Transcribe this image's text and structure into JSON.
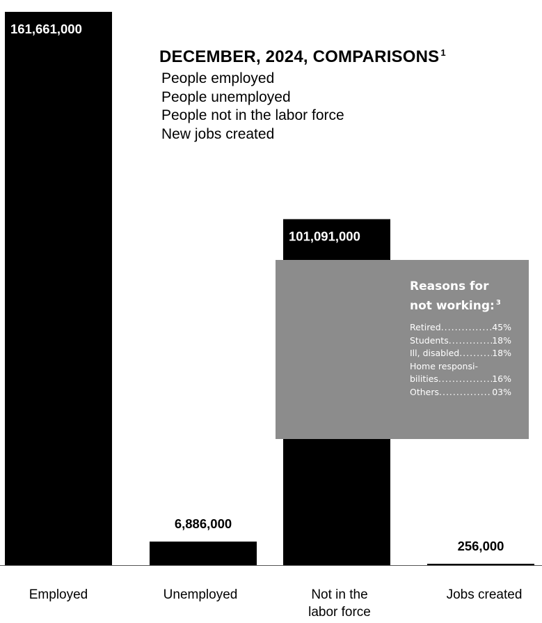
{
  "chart_data": {
    "type": "bar",
    "title": "DECEMBER, 2024, COMPARISONS",
    "title_footnote": "1",
    "categories": [
      "Employed",
      "Unemployed",
      "Not in the labor force",
      "Jobs created"
    ],
    "category_lines": [
      [
        "Employed"
      ],
      [
        "Unemployed"
      ],
      [
        "Not in the",
        "labor force"
      ],
      [
        "Jobs created"
      ]
    ],
    "values": [
      161661000,
      6886000,
      101091000,
      256000
    ],
    "value_labels": [
      "161,661,000",
      "6,886,000",
      "101,091,000",
      "256,000"
    ],
    "legend": [
      "People employed",
      "People unemployed",
      "People not in the labor force",
      "New jobs created"
    ],
    "ylim": [
      0,
      161661000
    ],
    "bar_color": "#000000",
    "axis_color": "#555555",
    "grid": false
  },
  "inset": {
    "title_lines": [
      "Reasons for",
      "not working:"
    ],
    "title_footnote": "3",
    "background": "#8c8c8c",
    "rows": [
      {
        "label": "Retired",
        "value": "45%"
      },
      {
        "label": "Students",
        "value": "18%"
      },
      {
        "label": "Ill, disabled",
        "value": "18%"
      },
      {
        "label": "Home responsi-",
        "value": ""
      },
      {
        "label": "bilities",
        "value": "16%"
      },
      {
        "label": "Others",
        "value": "03%"
      }
    ]
  }
}
